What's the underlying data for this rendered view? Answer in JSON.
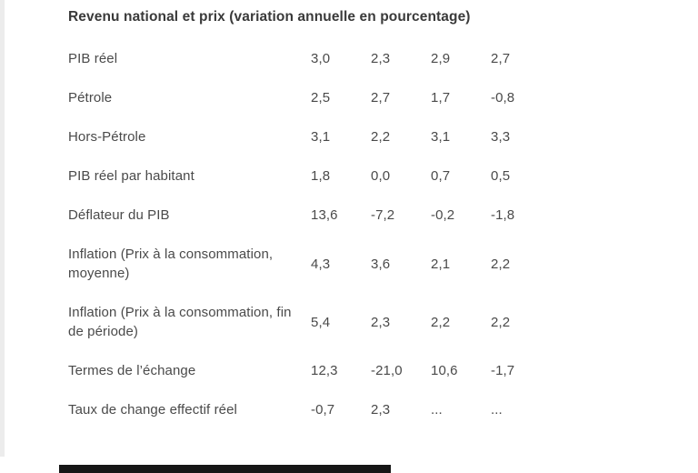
{
  "page": {
    "title": "Revenu national et prix (variation annuelle en pourcentage)"
  },
  "table": {
    "rows": [
      {
        "label": "PIB réel",
        "values": [
          "3,0",
          "2,3",
          "2,9",
          "2,7"
        ]
      },
      {
        "label": "Pétrole",
        "values": [
          "2,5",
          "2,7",
          "1,7",
          "-0,8"
        ]
      },
      {
        "label": "Hors-Pétrole",
        "values": [
          "3,1",
          "2,2",
          "3,1",
          "3,3"
        ]
      },
      {
        "label": "PIB réel par habitant",
        "values": [
          "1,8",
          "0,0",
          "0,7",
          "0,5"
        ]
      },
      {
        "label": "Déflateur du PIB",
        "values": [
          "13,6",
          "-7,2",
          "-0,2",
          "-1,8"
        ]
      },
      {
        "label": "Inflation (Prix à la consommation, moyenne)",
        "values": [
          "4,3",
          "3,6",
          "2,1",
          "2,2"
        ]
      },
      {
        "label": "Inflation (Prix à la consommation, fin de période)",
        "values": [
          "5,4",
          "2,3",
          "2,2",
          "2,2"
        ]
      },
      {
        "label": "Termes de l’échange",
        "values": [
          "12,3",
          "-21,0",
          "10,6",
          "-1,7"
        ]
      },
      {
        "label": "Taux de change effectif réel",
        "values": [
          "-0,7",
          "2,3",
          "...",
          "..."
        ]
      }
    ]
  },
  "chart_data": {
    "type": "table",
    "title": "Revenu national et prix (variation annuelle en pourcentage)",
    "rows": [
      [
        "PIB réel",
        "3,0",
        "2,3",
        "2,9",
        "2,7"
      ],
      [
        "Pétrole",
        "2,5",
        "2,7",
        "1,7",
        "-0,8"
      ],
      [
        "Hors-Pétrole",
        "3,1",
        "2,2",
        "3,1",
        "3,3"
      ],
      [
        "PIB réel par habitant",
        "1,8",
        "0,0",
        "0,7",
        "0,5"
      ],
      [
        "Déflateur du PIB",
        "13,6",
        "-7,2",
        "-0,2",
        "-1,8"
      ],
      [
        "Inflation (Prix à la consommation, moyenne)",
        "4,3",
        "3,6",
        "2,1",
        "2,2"
      ],
      [
        "Inflation (Prix à la consommation, fin de période)",
        "5,4",
        "2,3",
        "2,2",
        "2,2"
      ],
      [
        "Termes de l’échange",
        "12,3",
        "-21,0",
        "10,6",
        "-1,7"
      ],
      [
        "Taux de change effectif réel",
        "-0,7",
        "2,3",
        "...",
        "..."
      ]
    ]
  },
  "colors": {
    "background": "#ffffff",
    "title_text": "#3a3a3a",
    "body_text": "#4a4a4a",
    "edge_strip": "#ececec",
    "dark_bar": "#161616"
  }
}
